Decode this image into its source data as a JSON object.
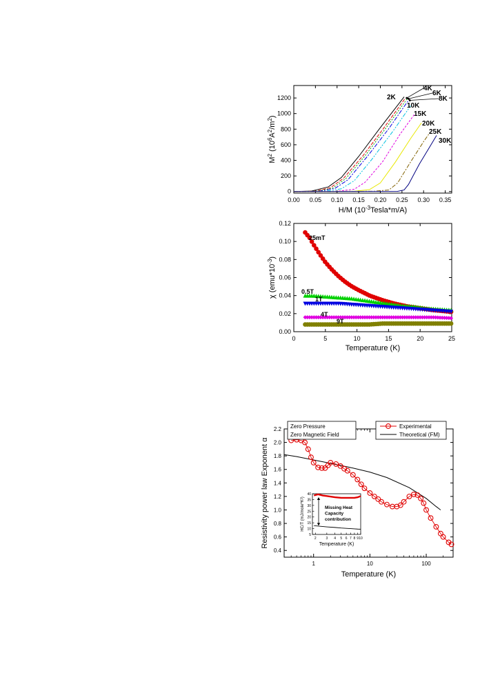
{
  "chart_data": [
    {
      "type": "line",
      "xlabel_main": "H/M (10",
      "xlabel_sup": "-3",
      "xlabel_rest": "Tesla*m/A)",
      "ylabel_main": "M",
      "ylabel_sup1": "2",
      "ylabel_mid": " (10",
      "ylabel_sup2": "6",
      "ylabel_mid2": "A",
      "ylabel_sup3": "2",
      "ylabel_mid3": "/m",
      "ylabel_sup4": "2",
      "ylabel_end": ")",
      "xlim": [
        0,
        0.365
      ],
      "ylim": [
        -20,
        1360
      ],
      "xticks": [
        0.0,
        0.05,
        0.1,
        0.15,
        0.2,
        0.25,
        0.3,
        0.35
      ],
      "xtick_labels": [
        "0.00",
        "0.05",
        "0.10",
        "0.15",
        "0.20",
        "0.25",
        "0.30",
        "0.35"
      ],
      "yticks": [
        0,
        200,
        400,
        600,
        800,
        1000,
        1200
      ],
      "ytick_labels": [
        "0",
        "200",
        "400",
        "600",
        "800",
        "1000",
        "1200"
      ],
      "series": [
        {
          "name": "2K",
          "color": "#000000",
          "dash": "",
          "x": [
            0.0,
            0.04,
            0.08,
            0.11,
            0.15,
            0.2,
            0.255
          ],
          "y": [
            0,
            5,
            60,
            180,
            450,
            820,
            1215
          ]
        },
        {
          "name": "4K",
          "color": "#e00000",
          "dash": "5,2",
          "x": [
            0.0,
            0.05,
            0.085,
            0.115,
            0.16,
            0.21,
            0.258
          ],
          "y": [
            0,
            5,
            50,
            170,
            460,
            830,
            1200
          ]
        },
        {
          "name": "6K",
          "color": "#00a000",
          "dash": "2,2",
          "x": [
            0.0,
            0.055,
            0.09,
            0.12,
            0.165,
            0.215,
            0.262
          ],
          "y": [
            0,
            5,
            45,
            165,
            460,
            830,
            1190
          ]
        },
        {
          "name": "8K",
          "color": "#0000e0",
          "dash": "6,2,2,2",
          "x": [
            0.0,
            0.06,
            0.095,
            0.125,
            0.17,
            0.22,
            0.265
          ],
          "y": [
            0,
            4,
            40,
            150,
            450,
            810,
            1170
          ]
        },
        {
          "name": "10K",
          "color": "#00c0e0",
          "dash": "6,2,2,2,2,2",
          "x": [
            0.0,
            0.075,
            0.11,
            0.14,
            0.18,
            0.23,
            0.27
          ],
          "y": [
            0,
            4,
            35,
            140,
            410,
            780,
            1100
          ]
        },
        {
          "name": "15K",
          "color": "#e000e0",
          "dash": "3,2",
          "x": [
            0.0,
            0.1,
            0.14,
            0.165,
            0.205,
            0.245,
            0.28
          ],
          "y": [
            0,
            3,
            30,
            120,
            380,
            730,
            1000
          ]
        },
        {
          "name": "20K",
          "color": "#e8e800",
          "dash": "",
          "x": [
            0.0,
            0.14,
            0.175,
            0.2,
            0.235,
            0.27,
            0.295
          ],
          "y": [
            0,
            3,
            25,
            110,
            380,
            680,
            880
          ]
        },
        {
          "name": "25K",
          "color": "#806000",
          "dash": "6,2,2,2",
          "x": [
            0.0,
            0.185,
            0.22,
            0.24,
            0.27,
            0.3,
            0.315
          ],
          "y": [
            0,
            3,
            20,
            110,
            380,
            640,
            760
          ]
        },
        {
          "name": "30K",
          "color": "#000080",
          "dash": "",
          "x": [
            0.0,
            0.24,
            0.255,
            0.265,
            0.29,
            0.315,
            0.33
          ],
          "y": [
            0,
            2,
            20,
            90,
            350,
            580,
            720
          ]
        }
      ],
      "labels": [
        "2K",
        "4K",
        "6K",
        "8K",
        "10K",
        "15K",
        "20K",
        "25K",
        "30K"
      ]
    },
    {
      "type": "scatter",
      "xlabel": "Temperature (K)",
      "ylabel_main": "χ  (emu*10",
      "ylabel_sup": "-3",
      "ylabel_end": ")",
      "xlim": [
        0,
        25
      ],
      "ylim": [
        0,
        0.12
      ],
      "xticks": [
        0,
        5,
        10,
        15,
        20,
        25
      ],
      "xtick_labels": [
        "0",
        "5",
        "10",
        "15",
        "20",
        "25"
      ],
      "yticks": [
        0.0,
        0.02,
        0.04,
        0.06,
        0.08,
        0.1,
        0.12
      ],
      "ytick_labels": [
        "0.00",
        "0.02",
        "0.04",
        "0.06",
        "0.08",
        "0.10",
        "0.12"
      ],
      "series": [
        {
          "name": "25mT",
          "color": "#e00000",
          "marker": "circle",
          "x": [
            1.8,
            2.5,
            3,
            4,
            5,
            6,
            7,
            8,
            9,
            10,
            12,
            14,
            16,
            18,
            20,
            22,
            25
          ],
          "y": [
            0.11,
            0.104,
            0.098,
            0.087,
            0.077,
            0.069,
            0.062,
            0.056,
            0.051,
            0.047,
            0.04,
            0.035,
            0.031,
            0.028,
            0.026,
            0.024,
            0.022
          ]
        },
        {
          "name": "0.5T",
          "color": "#00d000",
          "marker": "triangle-up",
          "x": [
            1.8,
            3,
            5,
            7,
            9,
            11,
            13,
            15,
            17,
            19,
            21,
            23,
            25
          ],
          "y": [
            0.04,
            0.04,
            0.039,
            0.038,
            0.037,
            0.035,
            0.033,
            0.031,
            0.029,
            0.028,
            0.026,
            0.025,
            0.024
          ]
        },
        {
          "name": "1T",
          "color": "#0000e0",
          "marker": "triangle-down",
          "x": [
            1.8,
            3,
            5,
            7,
            9,
            11,
            13,
            15,
            17,
            19,
            21,
            23,
            25
          ],
          "y": [
            0.031,
            0.031,
            0.031,
            0.031,
            0.03,
            0.029,
            0.028,
            0.027,
            0.026,
            0.025,
            0.024,
            0.023,
            0.022
          ]
        },
        {
          "name": "4T",
          "color": "#e000e0",
          "marker": "diamond",
          "x": [
            1.8,
            4,
            6,
            8,
            10,
            12,
            14,
            16,
            18,
            20,
            22,
            25
          ],
          "y": [
            0.016,
            0.016,
            0.016,
            0.016,
            0.016,
            0.016,
            0.016,
            0.016,
            0.016,
            0.016,
            0.016,
            0.015
          ]
        },
        {
          "name": "9T",
          "color": "#808000",
          "marker": "circle",
          "x": [
            1.8,
            4,
            6,
            8,
            10,
            12,
            14,
            16,
            18,
            20,
            22,
            25
          ],
          "y": [
            0.008,
            0.008,
            0.008,
            0.008,
            0.008,
            0.008,
            0.009,
            0.009,
            0.009,
            0.009,
            0.009,
            0.009
          ]
        }
      ],
      "labels": [
        "25mT",
        "0.5T",
        "1T",
        "4T",
        "9T"
      ]
    },
    {
      "type": "line",
      "xlabel": "Temperature (K)",
      "ylabel": "Resistivity power law Exponent  α",
      "xscale": "log",
      "xlim": [
        0.3,
        300
      ],
      "ylim": [
        0.3,
        2.2
      ],
      "xticks": [
        1,
        10,
        100
      ],
      "xtick_labels": [
        "1",
        "10",
        "100"
      ],
      "yticks": [
        0.4,
        0.6,
        0.8,
        1.0,
        1.2,
        1.4,
        1.6,
        1.8,
        2.0,
        2.2
      ],
      "ytick_labels": [
        "0.4",
        "0.6",
        "0.8",
        "1.0",
        "1.2",
        "1.4",
        "1.6",
        "1.8",
        "2.0",
        "2.2"
      ],
      "annotations": [
        "Zero Pressure",
        "Zero Magnetic Field"
      ],
      "legend": [
        "Experimental",
        "Theoretical (FM)"
      ],
      "series": [
        {
          "name": "Experimental",
          "color": "#e00000",
          "marker": "open-circle",
          "x": [
            0.4,
            0.5,
            0.6,
            0.7,
            0.8,
            0.9,
            1.0,
            1.2,
            1.4,
            1.6,
            1.8,
            2.0,
            2.5,
            3,
            3.5,
            4,
            5,
            6,
            7,
            8,
            10,
            12,
            14,
            16,
            20,
            25,
            30,
            35,
            40,
            50,
            60,
            70,
            80,
            90,
            100,
            120,
            150,
            180,
            200,
            250,
            280
          ],
          "y": [
            2.03,
            2.04,
            2.03,
            2.0,
            1.9,
            1.78,
            1.7,
            1.63,
            1.62,
            1.62,
            1.66,
            1.7,
            1.68,
            1.65,
            1.61,
            1.58,
            1.52,
            1.45,
            1.38,
            1.32,
            1.25,
            1.2,
            1.16,
            1.12,
            1.08,
            1.05,
            1.05,
            1.07,
            1.12,
            1.2,
            1.23,
            1.22,
            1.17,
            1.1,
            1.0,
            0.88,
            0.75,
            0.65,
            0.6,
            0.52,
            0.49
          ]
        },
        {
          "name": "Theoretical (FM)",
          "color": "#000000",
          "x": [
            0.3,
            0.5,
            1,
            2,
            5,
            10,
            20,
            50,
            100,
            150,
            180
          ],
          "y": [
            1.82,
            1.79,
            1.74,
            1.69,
            1.62,
            1.56,
            1.48,
            1.33,
            1.17,
            1.05,
            1.0
          ]
        }
      ],
      "inset": {
        "xlabel": "Temperature (K)",
        "ylabel": "HC/T  (mJ/mole*K²)",
        "xscale": "log",
        "xlim": [
          1.8,
          10
        ],
        "ylim": [
          5,
          40
        ],
        "xtick_labels": [
          "2",
          "3",
          "4",
          "5",
          "6",
          "7",
          "8",
          "9",
          "10"
        ],
        "ytick_labels": [
          "5",
          "10",
          "15",
          "20",
          "25",
          "30",
          "35",
          "40"
        ],
        "yticks": [
          5,
          10,
          15,
          20,
          25,
          30,
          35,
          40
        ],
        "xticks": [
          2,
          3,
          4,
          5,
          6,
          7,
          8,
          9,
          10
        ],
        "annotation_lines": [
          "Missing Heat",
          "Capacity",
          "contribution"
        ],
        "series": [
          {
            "name": "experimental",
            "color": "#e00000",
            "x": [
              1.9,
              2.2,
              2.6,
              3,
              4,
              5,
              6,
              7,
              8,
              9,
              10
            ],
            "y": [
              38.5,
              39.5,
              38.5,
              38,
              37,
              36.5,
              36.5,
              36.5,
              36.5,
              37,
              38
            ]
          },
          {
            "name": "theoretical",
            "color": "#000000",
            "x": [
              1.9,
              3,
              4,
              5,
              6,
              7,
              8,
              9,
              10
            ],
            "y": [
              12.5,
              11.5,
              11,
              10.5,
              10.2,
              10,
              9.8,
              9.6,
              9.5
            ]
          }
        ]
      }
    }
  ]
}
